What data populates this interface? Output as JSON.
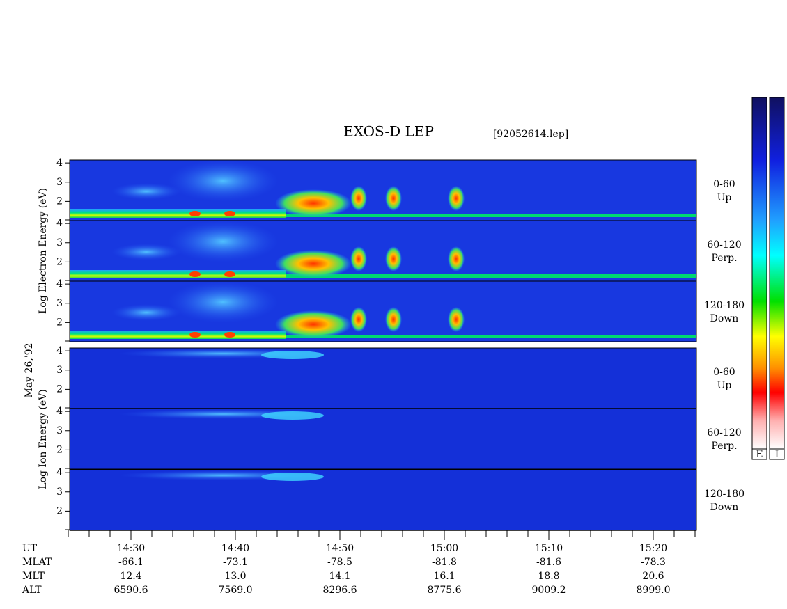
{
  "header": {
    "title": "EXOS-D LEP",
    "file": "[92052614.lep]",
    "date": "May 26,'92"
  },
  "groups": [
    {
      "axis_label": "Log Electron Energy (eV)",
      "panels": [
        {
          "range": "0-60",
          "direction": "Up"
        },
        {
          "range": "60-120",
          "direction": "Perp."
        },
        {
          "range": "120-180",
          "direction": "Down"
        }
      ]
    },
    {
      "axis_label": "Log Ion Energy (eV)",
      "panels": [
        {
          "range": "0-60",
          "direction": "Up"
        },
        {
          "range": "60-120",
          "direction": "Perp."
        },
        {
          "range": "120-180",
          "direction": "Down"
        }
      ]
    }
  ],
  "energy_axis": {
    "ylim": [
      1,
      4.15
    ],
    "yticks": [
      2,
      3,
      4
    ]
  },
  "colorbars": [
    "E",
    "I"
  ],
  "time_axis": {
    "row_labels": [
      "UT",
      "MLAT",
      "MLT",
      "ALT"
    ],
    "columns": [
      [
        "14:30",
        "-66.1",
        "12.4",
        "6590.6"
      ],
      [
        "14:40",
        "-73.1",
        "13.0",
        "7569.0"
      ],
      [
        "14:50",
        "-78.5",
        "14.1",
        "8296.6"
      ],
      [
        "15:00",
        "-81.8",
        "16.1",
        "8775.6"
      ],
      [
        "15:10",
        "-81.6",
        "18.8",
        "9009.2"
      ],
      [
        "15:20",
        "-78.3",
        "20.6",
        "8999.0"
      ]
    ]
  }
}
